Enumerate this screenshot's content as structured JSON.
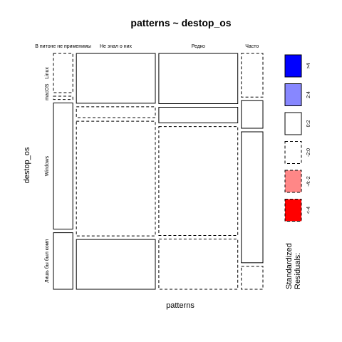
{
  "chart_data": {
    "type": "mosaic",
    "title": "patterns ~ destop_os",
    "xlabel": "patterns",
    "ylabel": "destop_os",
    "x_categories": [
      "В питоне не применимы",
      "Не знал о них",
      "Редко",
      "Часто"
    ],
    "y_categories": [
      "Linux",
      "macOS",
      "Windows",
      "Лишь бы был комп"
    ],
    "column_widths": [
      0.077,
      0.314,
      0.314,
      0.086
    ],
    "cell_heights": [
      [
        0.18,
        0.015,
        0.58,
        0.26
      ],
      [
        0.23,
        0.05,
        0.53,
        0.23
      ],
      [
        0.24,
        0.075,
        0.52,
        0.24
      ],
      [
        0.19,
        0.12,
        0.57,
        0.1
      ]
    ],
    "cell_style": [
      [
        "dashed",
        "dashed",
        "solid",
        "solid"
      ],
      [
        "solid",
        "dashed",
        "dashed",
        "solid"
      ],
      [
        "solid",
        "solid",
        "dashed",
        "dashed"
      ],
      [
        "dashed",
        "solid",
        "solid",
        "dashed"
      ]
    ],
    "legend": {
      "title_line1": "Standardized",
      "title_line2": "Residuals:",
      "items": [
        {
          "label": ">4",
          "color": "#0000ff",
          "style": "solid"
        },
        {
          "label": "2:4",
          "color": "#8787ff",
          "style": "solid"
        },
        {
          "label": "0:2",
          "color": "#ffffff",
          "style": "solid"
        },
        {
          "label": "-2:0",
          "color": "#ffffff",
          "style": "dashed"
        },
        {
          "label": "-4:-2",
          "color": "#ff8787",
          "style": "dashed"
        },
        {
          "label": "<-4",
          "color": "#ff0000",
          "style": "dashed"
        }
      ]
    }
  }
}
